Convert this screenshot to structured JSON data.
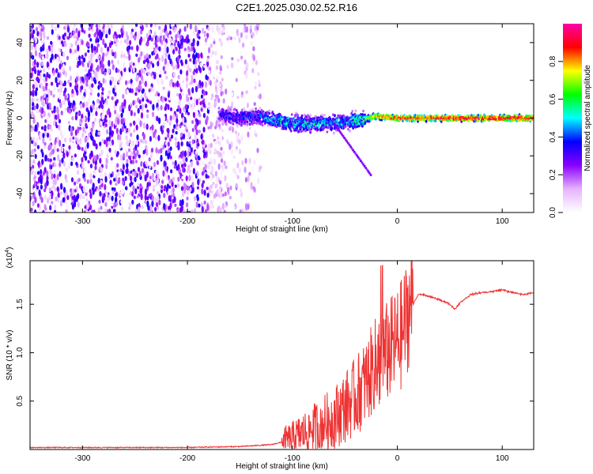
{
  "title": "C2E1.2025.030.02.52.R16",
  "chart_data": [
    {
      "type": "heatmap",
      "xlabel": "Height of straight line (km)",
      "ylabel": "Frequency (Hz)",
      "xlim": [
        -350,
        130
      ],
      "ylim": [
        -50,
        50
      ],
      "xticks": [
        -300,
        -200,
        -100,
        0,
        100
      ],
      "yticks": [
        -40,
        -20,
        0,
        20,
        40
      ],
      "colorbar": {
        "label": "Normalized spectral amplitude",
        "range": [
          0,
          1
        ],
        "ticks": [
          "0.0",
          "0.2",
          "0.4",
          "0.6",
          "0.8"
        ],
        "colors": [
          "#ffffff",
          "#e6b3ff",
          "#8a00ff",
          "#0000ff",
          "#00ffff",
          "#00ff00",
          "#ffff00",
          "#ff0000",
          "#ff00aa"
        ]
      },
      "ridge": {
        "x": [
          -170,
          -150,
          -130,
          -110,
          -90,
          -70,
          -50,
          -35,
          -20,
          0,
          50,
          100,
          130
        ],
        "y": [
          2,
          0,
          1,
          -2,
          -3,
          -3,
          -2,
          -1,
          1,
          0,
          0,
          0,
          0
        ],
        "amplitude": [
          0.35,
          0.4,
          0.45,
          0.55,
          0.55,
          0.55,
          0.5,
          0.6,
          0.85,
          0.9,
          0.95,
          0.95,
          0.95
        ]
      },
      "noise_region": {
        "x": [
          -350,
          -165
        ],
        "amplitude": 0.25
      }
    },
    {
      "type": "line",
      "xlabel": "Height of straight line (km)",
      "ylabel": "SNR (10 * v/v)",
      "y_multiplier": "(x10",
      "y_multiplier_exp": "4",
      "y_multiplier_close": ")",
      "xlim": [
        -350,
        130
      ],
      "ylim": [
        0,
        1.95
      ],
      "xticks": [
        -300,
        -200,
        -100,
        0,
        100
      ],
      "yticks": [
        "0.5",
        "1.0",
        "1.5"
      ],
      "color": "#ee3333",
      "series": [
        {
          "x": [
            -350,
            -200,
            -150,
            -120,
            -100,
            -90,
            -80,
            -70,
            -60,
            -50,
            -40,
            -30,
            -25,
            -20,
            -15,
            -10,
            -5,
            0,
            5,
            10,
            15,
            20,
            25,
            30,
            40,
            50,
            55,
            60,
            70,
            80,
            90,
            100,
            110,
            120,
            130
          ],
          "y": [
            0.02,
            0.02,
            0.03,
            0.05,
            0.1,
            0.15,
            0.2,
            0.25,
            0.3,
            0.4,
            0.5,
            0.65,
            0.75,
            0.85,
            0.9,
            0.95,
            1.0,
            1.05,
            1.15,
            1.35,
            1.5,
            1.6,
            1.6,
            1.58,
            1.55,
            1.5,
            1.45,
            1.52,
            1.6,
            1.62,
            1.63,
            1.65,
            1.62,
            1.6,
            1.62
          ]
        }
      ]
    }
  ]
}
